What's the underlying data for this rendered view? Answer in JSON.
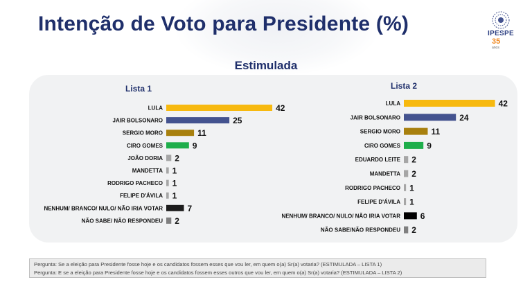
{
  "title": "Intenção de Voto para Presidente (%)",
  "subtitle": "Estimulada",
  "logo": {
    "text": "IPESPE",
    "years": "35",
    "years_label": "anos"
  },
  "chart_data": [
    {
      "type": "bar",
      "orientation": "horizontal",
      "title": "Lista 1",
      "categories": [
        "LULA",
        "JAIR BOLSONARO",
        "SERGIO MORO",
        "CIRO GOMES",
        "JOÃO DORIA",
        "MANDETTA",
        "RODRIGO PACHECO",
        "FELIPE D'ÁVILA",
        "NENHUM/ BRANCO/ NULO/ NÃO IRIA VOTAR",
        "NÃO SABE/ NÃO RESPONDEU"
      ],
      "values": [
        42,
        25,
        11,
        9,
        2,
        1,
        1,
        1,
        7,
        2
      ],
      "colors": [
        "#f7b90f",
        "#44538f",
        "#a8800e",
        "#1fae4b",
        "#a6a6a6",
        "#a6a6a6",
        "#a6a6a6",
        "#a6a6a6",
        "#1c1c1c",
        "#7f7f7f"
      ],
      "xlim": [
        0,
        45
      ],
      "grid": false
    },
    {
      "type": "bar",
      "orientation": "horizontal",
      "title": "Lista 2",
      "categories": [
        "LULA",
        "JAIR BOLSONARO",
        "SERGIO MORO",
        "CIRO GOMES",
        "EDUARDO LEITE",
        "MANDETTA",
        "RODRIGO PACHECO",
        "FELIPE D'ÁVILA",
        "NENHUM/ BRANCO/ NULO/ NÃO IRIA VOTAR",
        "NÃO SABE/NÃO RESPONDEU"
      ],
      "values": [
        42,
        24,
        11,
        9,
        2,
        2,
        1,
        1,
        6,
        2
      ],
      "colors": [
        "#f7b90f",
        "#44538f",
        "#a8800e",
        "#1fae4b",
        "#a6a6a6",
        "#a6a6a6",
        "#a6a6a6",
        "#a6a6a6",
        "#000000",
        "#7f7f7f"
      ],
      "xlim": [
        0,
        45
      ],
      "grid": false
    }
  ],
  "footnote": {
    "line1": "Pergunta:  Se a eleição para Presidente fosse hoje e os candidatos fossem esses que vou ler, em quem o(a) Sr(a) votaria? (ESTIMULADA – LISTA 1)",
    "line2": "Pergunta:  E se a eleição para Presidente fosse hoje e os candidatos fossem esses outros que vou ler, em quem o(a) Sr(a) votaria?  (ESTIMULADA – LISTA 2)"
  }
}
